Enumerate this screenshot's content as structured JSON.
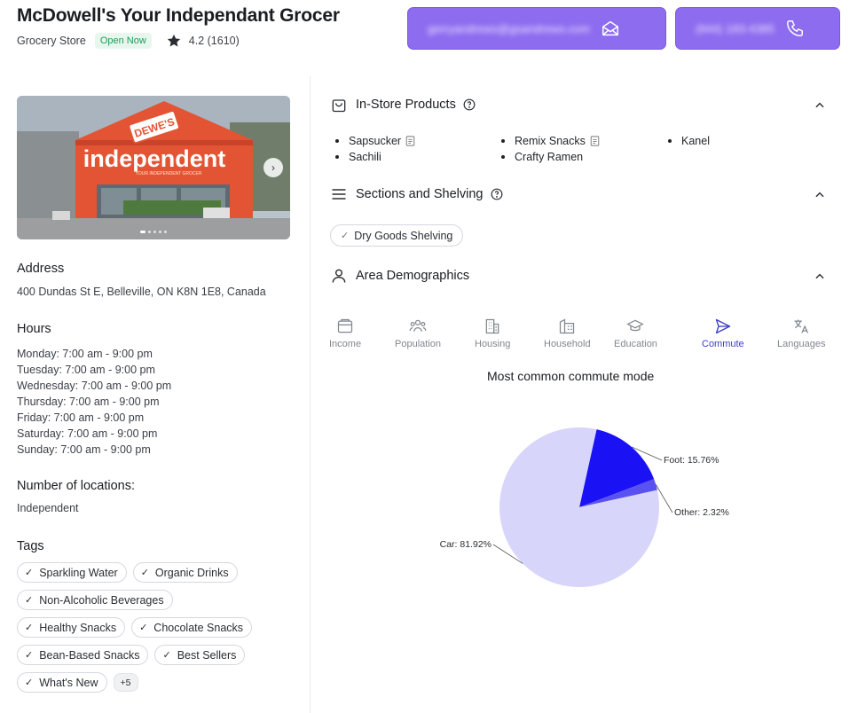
{
  "header": {
    "title": "McDowell's Your Independant Grocer",
    "category": "Grocery Store",
    "status_badge": "Open Now",
    "rating": "4.2 (1610)",
    "email_blurred": "gerryandrews@gsandrews.com",
    "phone_blurred": "(844) 183-4385"
  },
  "photo": {
    "sign_text": "independent",
    "badge_text": "DEWE'S",
    "banner_text": "YOUR INDEPENDENT GROCER"
  },
  "address": {
    "label": "Address",
    "value": "400 Dundas St E, Belleville, ON K8N 1E8, Canada"
  },
  "hours": {
    "label": "Hours",
    "days": [
      "Monday: 7:00 am  -  9:00 pm",
      "Tuesday: 7:00 am  -  9:00 pm",
      "Wednesday: 7:00 am  -  9:00 pm",
      "Thursday: 7:00 am  -  9:00 pm",
      "Friday: 7:00 am  -  9:00 pm",
      "Saturday: 7:00 am  -  9:00 pm",
      "Sunday: 7:00 am  -  9:00 pm"
    ]
  },
  "locations": {
    "label": "Number of locations:",
    "value": "Independent"
  },
  "tags": {
    "label": "Tags",
    "items": [
      "Sparkling Water",
      "Organic Drinks",
      "Non-Alcoholic Beverages",
      "Healthy Snacks",
      "Chocolate Snacks",
      "Bean-Based Snacks",
      "Best Sellers",
      "What's New"
    ],
    "more": "+5"
  },
  "in_store": {
    "label": "In-Store Products",
    "products": [
      "Sapsucker",
      "Sachili",
      "Remix Snacks",
      "Crafty Ramen",
      "Kanel"
    ]
  },
  "sections": {
    "label": "Sections and Shelving",
    "chip": "Dry Goods Shelving"
  },
  "demographics": {
    "label": "Area Demographics",
    "tabs": [
      "Income",
      "Population",
      "Housing",
      "Household",
      "Education",
      "Commute",
      "Languages"
    ],
    "active_tab": "Commute",
    "chart_title": "Most common commute mode"
  },
  "colors": {
    "accent": "#8e6cf0",
    "active_tab": "#3d3fc4",
    "badge_green": "#1e9a5a"
  },
  "chart_data": {
    "type": "pie",
    "title": "Most common commute mode",
    "slices": [
      {
        "name": "Foot",
        "value": 15.76,
        "label": "Foot: 15.76%",
        "color": "#1a12f5"
      },
      {
        "name": "Other",
        "value": 2.32,
        "label": "Other: 2.32%",
        "color": "#5a52f0"
      },
      {
        "name": "Car",
        "value": 81.92,
        "label": "Car: 81.92%",
        "color": "#d8d5fb"
      }
    ]
  }
}
